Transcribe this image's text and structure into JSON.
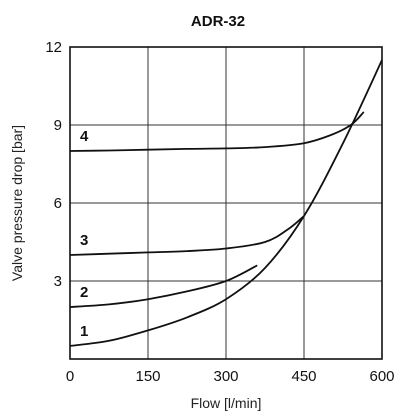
{
  "chart_data": {
    "type": "line",
    "title": "ADR-32",
    "xlabel": "Flow [l/min]",
    "ylabel": "Valve pressure drop [bar]",
    "xlim": [
      0,
      600
    ],
    "ylim": [
      0,
      12
    ],
    "xticks": [
      "0",
      "150",
      "300",
      "450",
      "600"
    ],
    "yticks": [
      "3",
      "6",
      "9",
      "12"
    ],
    "grid": true,
    "series": [
      {
        "name": "1",
        "x": [
          0,
          75,
          150,
          225,
          300,
          375,
          450,
          525,
          600
        ],
        "y": [
          0.5,
          0.7,
          1.1,
          1.6,
          2.3,
          3.5,
          5.5,
          8.3,
          11.5
        ]
      },
      {
        "name": "2",
        "x": [
          0,
          75,
          150,
          225,
          300,
          360
        ],
        "y": [
          2.0,
          2.1,
          2.3,
          2.6,
          3.0,
          3.6
        ]
      },
      {
        "name": "3",
        "x": [
          0,
          75,
          150,
          225,
          300,
          375,
          420,
          450
        ],
        "y": [
          4.0,
          4.05,
          4.1,
          4.15,
          4.25,
          4.5,
          5.0,
          5.5
        ]
      },
      {
        "name": "4",
        "x": [
          0,
          75,
          150,
          225,
          300,
          375,
          450,
          500,
          540,
          565
        ],
        "y": [
          8.0,
          8.02,
          8.05,
          8.08,
          8.1,
          8.15,
          8.3,
          8.6,
          9.0,
          9.5
        ]
      }
    ]
  }
}
